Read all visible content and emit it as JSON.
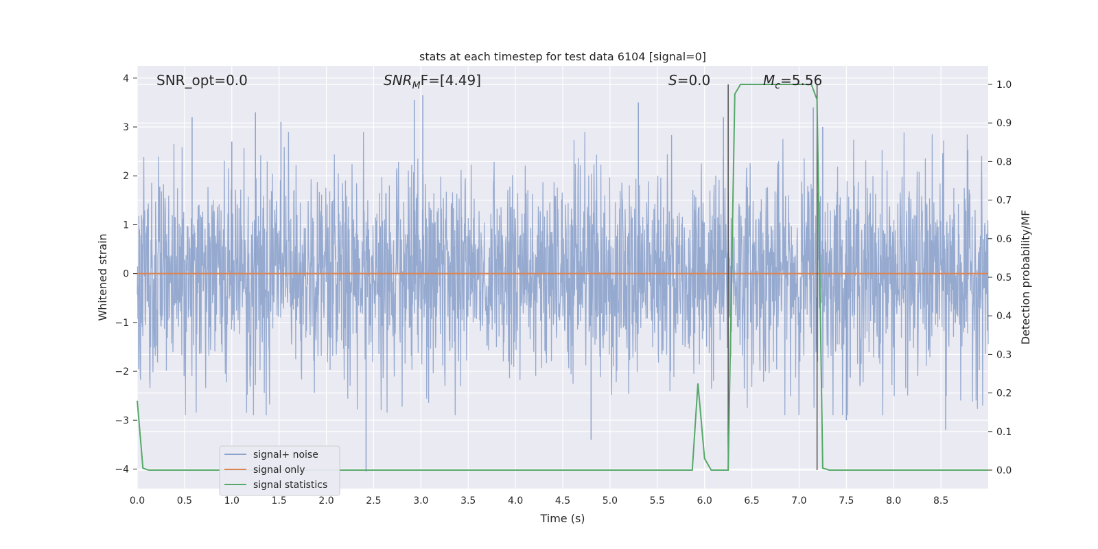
{
  "chart_data": {
    "type": "line",
    "title": "stats at each timestep for test data 6104 [signal=0]",
    "xlabel": "Time (s)",
    "ylabel": "Whitened strain",
    "ylabel_right": "Detection probability/MF",
    "xlim": [
      0.0,
      9.0
    ],
    "ylim": [
      -4.4,
      4.25
    ],
    "ylim_right": [
      -0.048,
      1.048
    ],
    "x_ticks": [
      "0.0",
      "0.5",
      "1.0",
      "1.5",
      "2.0",
      "2.5",
      "3.0",
      "3.5",
      "4.0",
      "4.5",
      "5.0",
      "5.5",
      "6.0",
      "6.5",
      "7.0",
      "7.5",
      "8.0",
      "8.5"
    ],
    "y_ticks": [
      "4",
      "3",
      "2",
      "1",
      "0",
      "−1",
      "−2",
      "−3",
      "−4"
    ],
    "y_ticks_right": [
      "1.0",
      "0.9",
      "0.8",
      "0.7",
      "0.6",
      "0.5",
      "0.4",
      "0.3",
      "0.2",
      "0.1",
      "0.0"
    ],
    "grid": true,
    "legend_placement": "bottom-left",
    "annotations": {
      "snr_opt": "SNR_opt=0.0",
      "snr_mf_main": "SNR",
      "snr_mf_sub": "M",
      "snr_mf_rest": "F=[4.49]",
      "s_main": "S",
      "s_rest": "=0.0",
      "mc_main": "M",
      "mc_sub": "c",
      "mc_rest": "=5.56"
    },
    "vertical_markers": [
      6.25,
      7.19
    ],
    "series": [
      {
        "name": "signal+ noise",
        "color": "#8da3cc",
        "description": "whitened noise, approx |amplitude| up to 4",
        "peaks": [
          [
            0.58,
            3.2
          ],
          [
            1.0,
            2.7
          ],
          [
            1.25,
            3.3
          ],
          [
            1.52,
            3.1
          ],
          [
            2.42,
            -4.05
          ],
          [
            2.93,
            3.55
          ],
          [
            3.02,
            3.65
          ],
          [
            4.8,
            -3.4
          ],
          [
            5.3,
            3.5
          ],
          [
            6.2,
            3.2
          ],
          [
            7.15,
            3.4
          ],
          [
            7.25,
            3.0
          ],
          [
            7.5,
            -3.0
          ],
          [
            8.55,
            -3.2
          ]
        ]
      },
      {
        "name": "signal only",
        "color": "#dd8452",
        "values_constant": 0.0
      },
      {
        "name": "signal statistics",
        "color": "#55a868",
        "axis": "right",
        "x": [
          0.0,
          0.06,
          0.12,
          5.5,
          5.87,
          5.93,
          6.0,
          6.07,
          6.25,
          6.32,
          6.38,
          6.45,
          7.13,
          7.19,
          7.25,
          7.32,
          9.0
        ],
        "y": [
          0.18,
          0.005,
          0.0,
          0.0,
          0.0,
          0.225,
          0.03,
          0.0,
          0.0,
          0.975,
          1.0,
          1.0,
          1.0,
          0.96,
          0.005,
          0.0,
          0.0
        ]
      }
    ],
    "colors": {
      "plot_background": "#eaeaf2",
      "grid": "#ffffff",
      "marker_line": "#4d4d4d"
    }
  }
}
